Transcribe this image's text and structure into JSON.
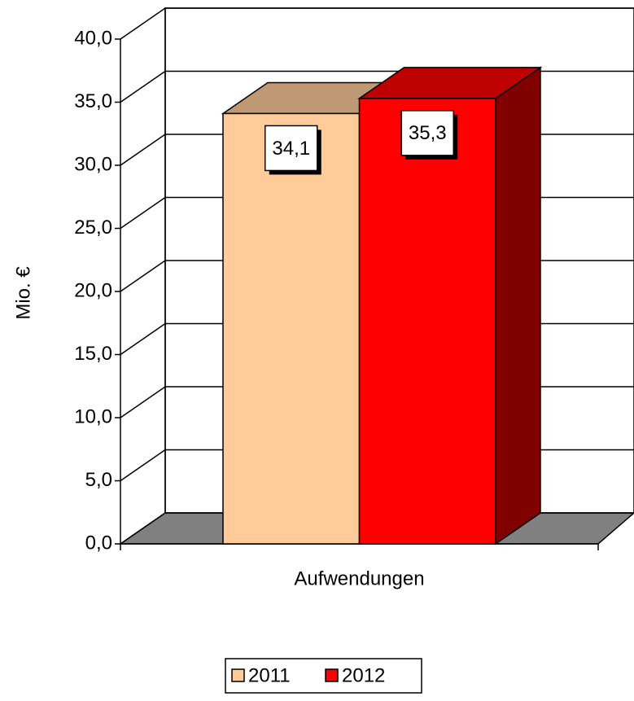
{
  "chart_data": {
    "type": "bar3d",
    "categories": [
      "Aufwendungen"
    ],
    "y_label": "Mio. €",
    "series": [
      {
        "name": "2011",
        "color": "#ffcc99",
        "values": [
          34.1
        ],
        "value_labels": [
          "34,1"
        ]
      },
      {
        "name": "2012",
        "color": "#ff0000",
        "values": [
          35.3
        ],
        "value_labels": [
          "35,3"
        ]
      }
    ],
    "ylim": [
      0,
      40
    ],
    "yticks": [
      {
        "value": 0,
        "label": "0,0"
      },
      {
        "value": 5,
        "label": "5,0"
      },
      {
        "value": 10,
        "label": "10,0"
      },
      {
        "value": 15,
        "label": "15,0"
      },
      {
        "value": 20,
        "label": "20,0"
      },
      {
        "value": 25,
        "label": "25,0"
      },
      {
        "value": 30,
        "label": "30,0"
      },
      {
        "value": 35,
        "label": "35,0"
      },
      {
        "value": 40,
        "label": "40,0"
      }
    ],
    "grid": true,
    "legend": "bottom"
  }
}
